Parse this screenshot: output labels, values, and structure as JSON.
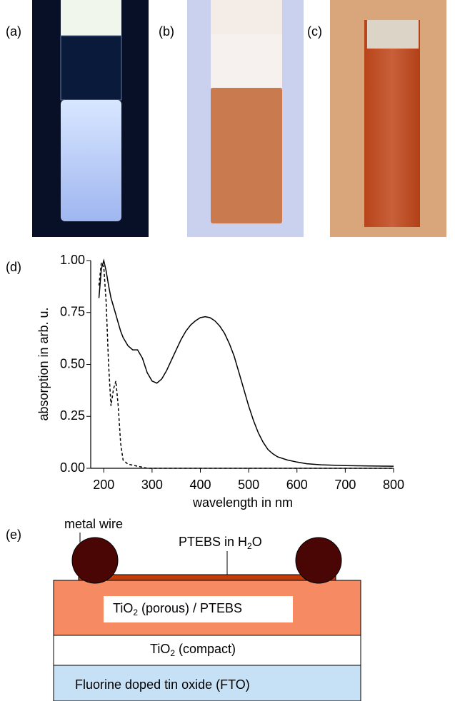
{
  "panels": {
    "a": "(a)",
    "b": "(b)",
    "c": "(c)",
    "d": "(d)",
    "e": "(e)"
  },
  "chart_data": {
    "type": "line",
    "xlabel": "wavelength in nm",
    "ylabel": "absorption in arb. u.",
    "x": [
      190,
      195,
      200,
      205,
      210,
      215,
      220,
      225,
      230,
      235,
      240,
      250,
      260,
      270,
      280,
      290,
      300,
      310,
      320,
      330,
      340,
      350,
      360,
      370,
      380,
      390,
      400,
      410,
      420,
      430,
      440,
      450,
      460,
      470,
      480,
      490,
      500,
      510,
      520,
      530,
      540,
      550,
      560,
      580,
      600,
      620,
      650,
      700,
      750,
      800
    ],
    "series": [
      {
        "color": "#000000",
        "style": "solid",
        "values": [
          0.82,
          0.96,
          1.0,
          0.95,
          0.88,
          0.82,
          0.78,
          0.74,
          0.7,
          0.66,
          0.63,
          0.59,
          0.57,
          0.57,
          0.53,
          0.46,
          0.42,
          0.41,
          0.43,
          0.47,
          0.52,
          0.57,
          0.62,
          0.66,
          0.69,
          0.71,
          0.725,
          0.73,
          0.725,
          0.71,
          0.685,
          0.65,
          0.6,
          0.54,
          0.46,
          0.38,
          0.3,
          0.23,
          0.17,
          0.125,
          0.09,
          0.07,
          0.055,
          0.04,
          0.03,
          0.022,
          0.017,
          0.013,
          0.011,
          0.01
        ]
      },
      {
        "color": "#000000",
        "style": "dashed",
        "values": [
          0.88,
          0.99,
          0.97,
          0.8,
          0.5,
          0.3,
          0.38,
          0.42,
          0.3,
          0.12,
          0.04,
          0.02,
          0.015,
          0.01,
          0.005,
          0,
          0,
          0,
          0,
          0,
          0,
          0,
          0,
          0,
          0,
          0,
          0,
          0,
          0,
          0,
          0,
          0,
          0,
          0,
          0,
          0,
          0,
          0,
          0,
          0,
          0,
          0,
          0,
          0,
          0,
          0,
          0,
          0,
          0,
          0
        ]
      }
    ],
    "xlim": [
      173,
      800
    ],
    "ylim": [
      0,
      1
    ],
    "xticks": [
      200,
      300,
      400,
      500,
      600,
      700,
      800
    ],
    "yticks": [
      {
        "value": 0,
        "label": "0.00"
      },
      {
        "value": 0.25,
        "label": "0.25"
      },
      {
        "value": 0.5,
        "label": "0.50"
      },
      {
        "value": 0.75,
        "label": "0.75"
      },
      {
        "value": 1,
        "label": "1.00"
      }
    ]
  },
  "diagram": {
    "metal_wire": "metal wire",
    "solution": [
      "PTEBS in H",
      "2",
      "O"
    ],
    "porous": [
      "TiO",
      "2",
      " (porous) / PTEBS"
    ],
    "compact": [
      "TiO",
      "2",
      " (compact)"
    ],
    "fto": "Fluorine doped tin oxide (FTO)"
  }
}
